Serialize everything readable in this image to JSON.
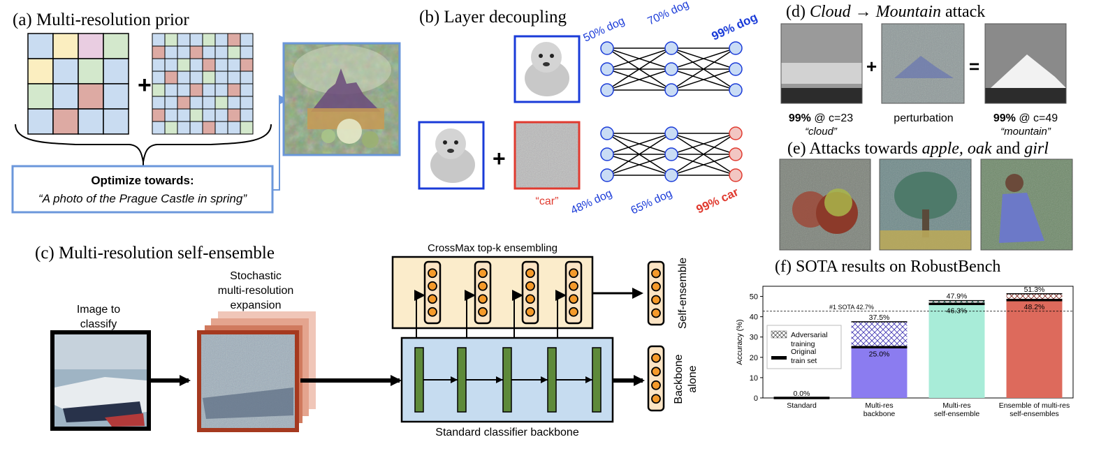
{
  "panel_a": {
    "title": "(a)   Multi-resolution prior",
    "plus": "+",
    "opt_title": "Optimize towards:",
    "opt_prompt": "“A photo of the Prague Castle in spring”"
  },
  "panel_b": {
    "title": "(b)   Layer decoupling",
    "plus": "+",
    "car_label": "“car”",
    "top_labels": [
      "50% dog",
      "70% dog",
      "99% dog"
    ],
    "bottom_labels": [
      "48% dog",
      "65% dog",
      "99% car"
    ],
    "colors": {
      "dog": "#1a3bd8",
      "car": "#e03a2f",
      "node_blue": "#c9dcf5",
      "node_red": "#f2c6c2"
    }
  },
  "panel_c": {
    "title": "(c)   Multi-resolution self-ensemble",
    "crossmax_label": "CrossMax top-k ensembling",
    "image_label": [
      "Image to",
      "classify"
    ],
    "expansion_label": [
      "Stochastic",
      "multi-resolution",
      "expansion"
    ],
    "self_ensemble": "Self-ensemble",
    "backbone_alone": [
      "Backbone",
      "alone"
    ],
    "backbone_label": "Standard classifier backbone"
  },
  "panel_d": {
    "title_prefix": "(d)  ",
    "title_italic1": "Cloud",
    "title_arrow": " → ",
    "title_italic2": "Mountain",
    "title_suffix": " attack",
    "plus": "+",
    "equals": "=",
    "left_pct": "99%",
    "left_c": " @ c=23",
    "left_name": "“cloud”",
    "mid_label": "perturbation",
    "right_pct": "99%",
    "right_c": " @ c=49",
    "right_name": "“mountain”"
  },
  "panel_e": {
    "title_prefix": "(e)   Attacks towards ",
    "title_italic": "apple, oak",
    "title_mid": " and ",
    "title_italic2": "girl"
  },
  "panel_f": {
    "title": "(f)   SOTA results on RobustBench"
  },
  "chart_data": {
    "type": "bar",
    "ylabel": "Accuracy (%)",
    "ylim": [
      0,
      55
    ],
    "yticks": [
      0,
      10,
      20,
      30,
      40,
      50
    ],
    "categories": [
      "Standard",
      "Multi-res\nbackbone",
      "Multi-res\nself-ensemble",
      "Ensemble of multi-res\nself-ensembles"
    ],
    "series": [
      {
        "name": "Original train set",
        "values": [
          0.0,
          25.0,
          46.3,
          48.2
        ]
      },
      {
        "name": "Adversarial training",
        "values": [
          0.0,
          37.5,
          47.9,
          51.3
        ]
      }
    ],
    "bar_labels_top": [
      "0.0%",
      "37.5%",
      "47.9%",
      "51.3%"
    ],
    "bar_labels_base": [
      "",
      "25.0%",
      "46.3%",
      "48.2%"
    ],
    "bar_colors": [
      "#ffffff",
      "#8b7cf0",
      "#a8ecd8",
      "#dd6a5c"
    ],
    "reference_line": {
      "value": 42.7,
      "label": "#1 SOTA 42.7%"
    },
    "legend": [
      "Adversarial training",
      "Original train set"
    ],
    "legend_position": "upper-left"
  }
}
